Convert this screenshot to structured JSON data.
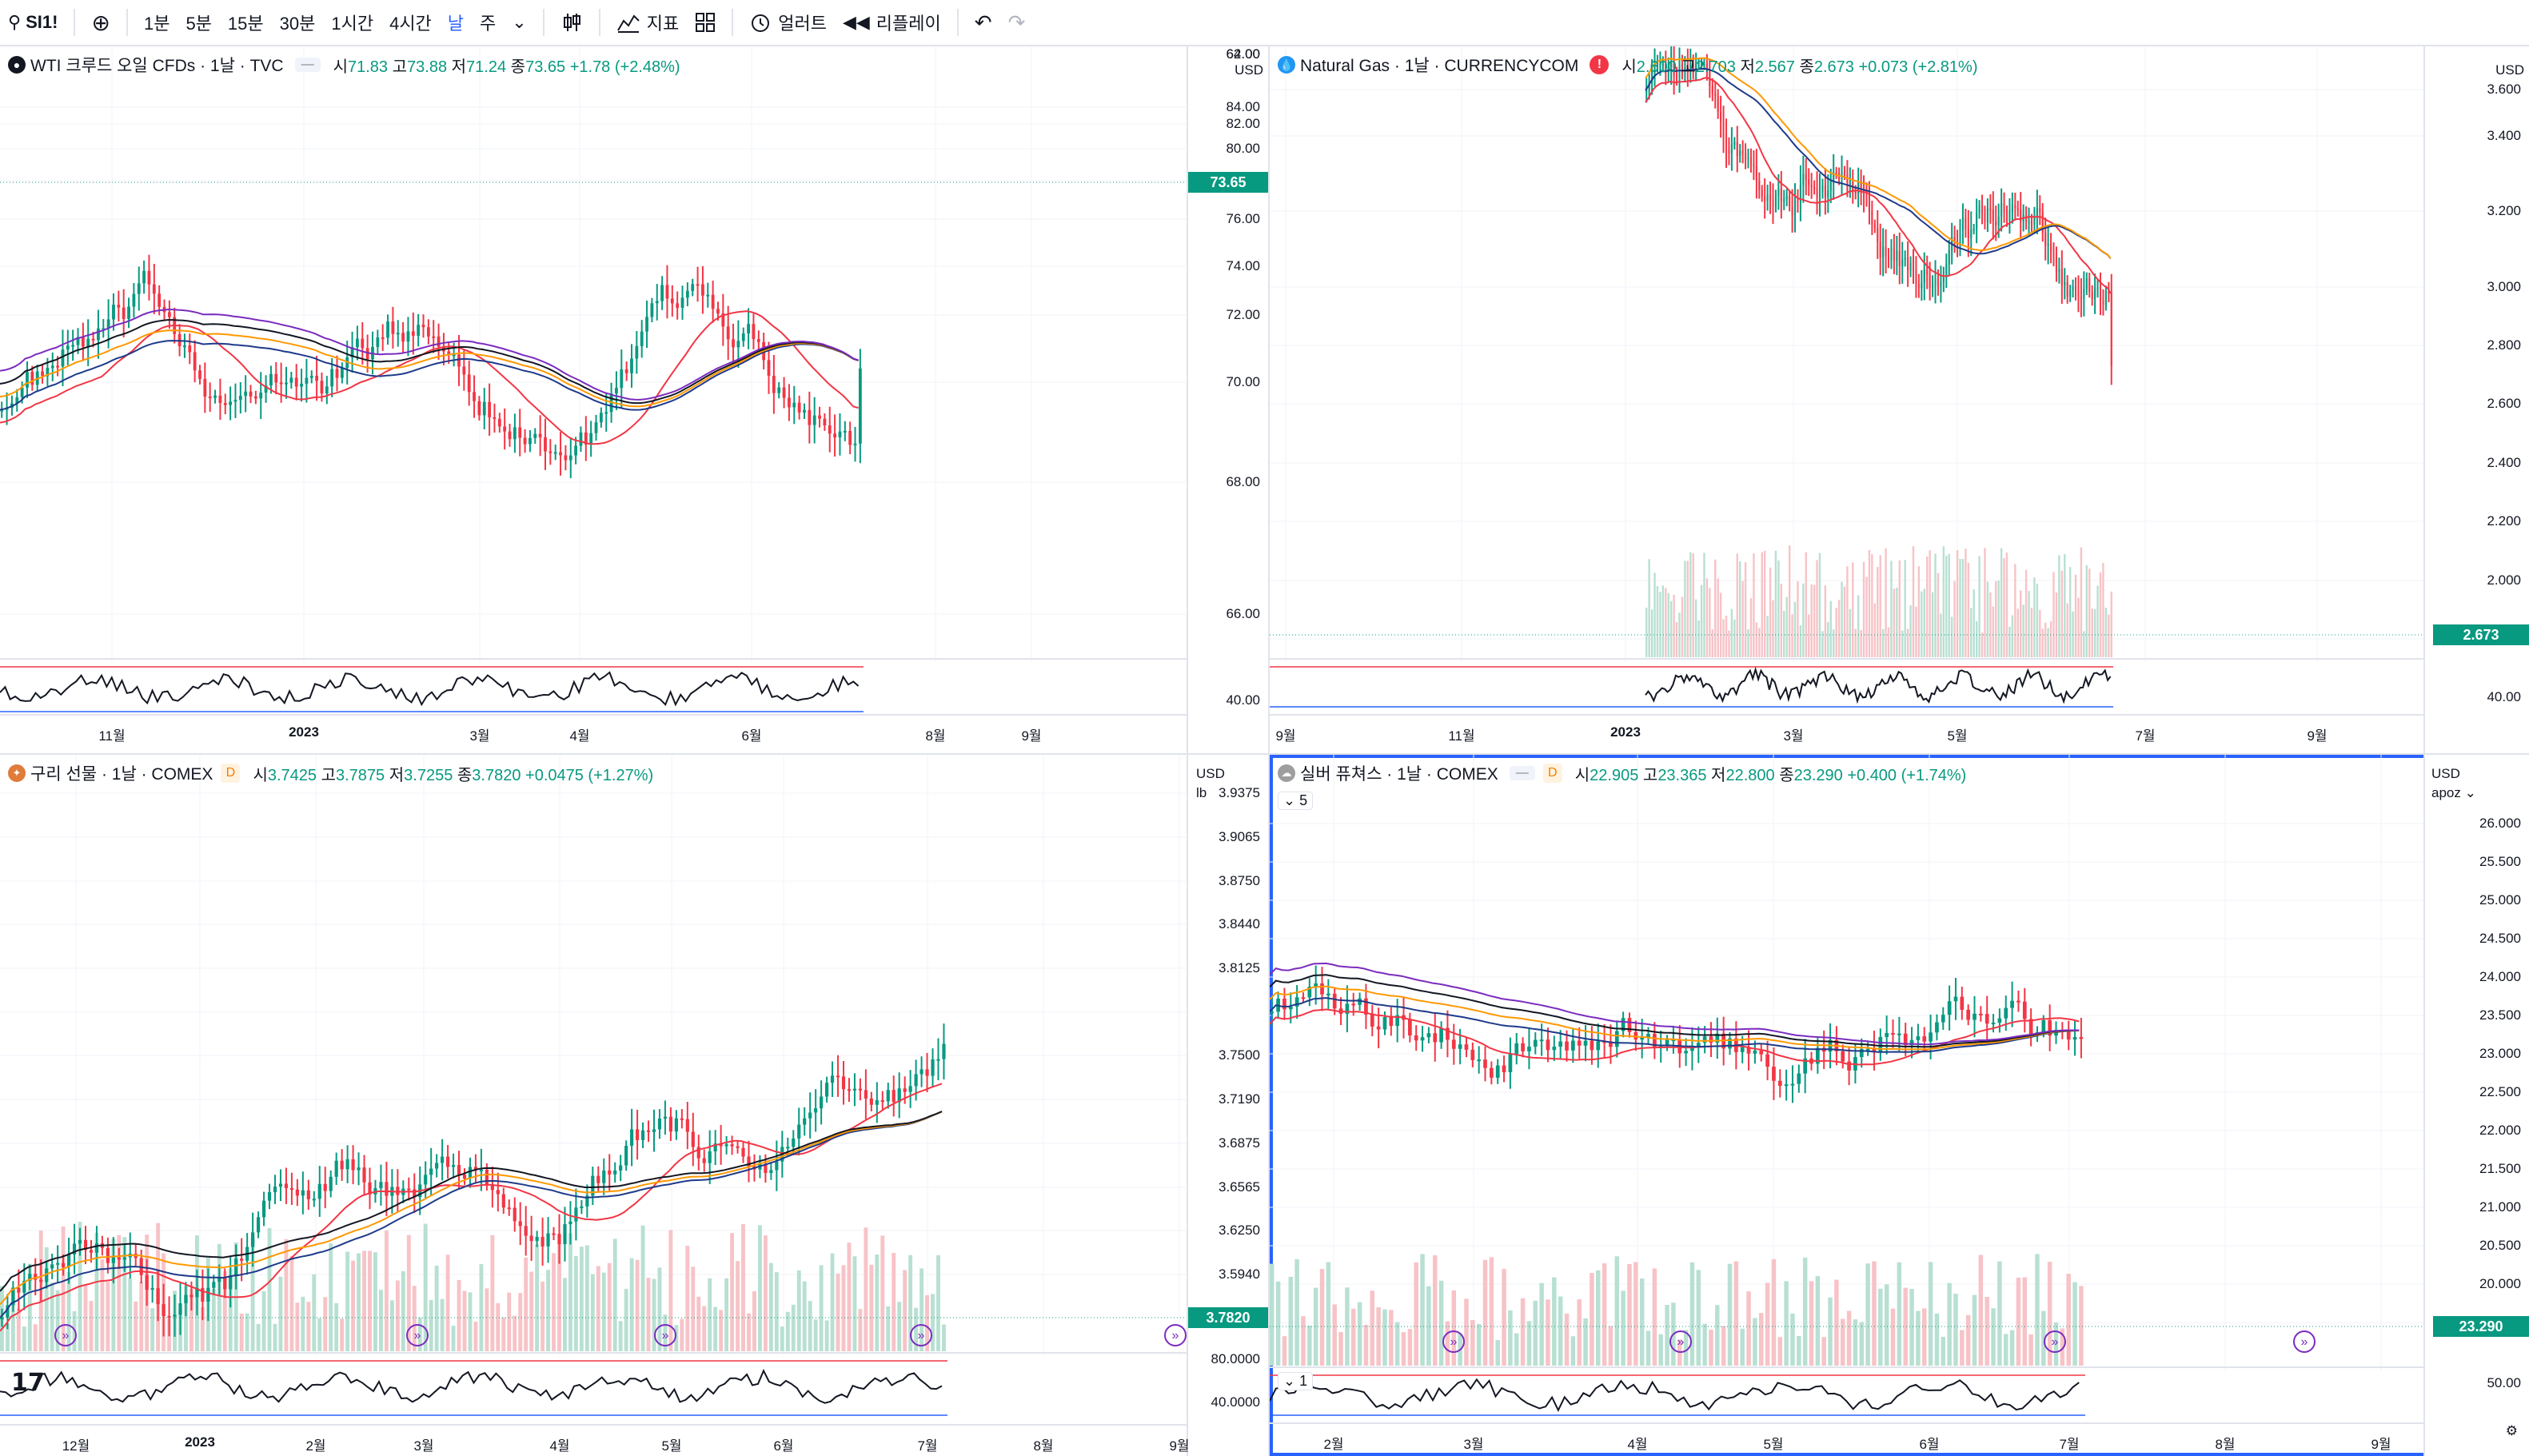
{
  "toolbar": {
    "symbol": "SI1!",
    "intervals": [
      "1분",
      "5분",
      "15분",
      "30분",
      "1시간",
      "4시간",
      "날",
      "주"
    ],
    "active_interval": "날",
    "indicators_label": "지표",
    "alert_label": "얼러트",
    "replay_label": "리플레이"
  },
  "panes": [
    {
      "id": "wti",
      "legend": {
        "name": "WTI 크루드 오일 CFDs · 1날 · TVC",
        "open_k": "시",
        "open": "71.83",
        "high_k": "고",
        "high": "73.88",
        "low_k": "저",
        "low": "71.24",
        "close_k": "종",
        "close": "73.65",
        "change": "+1.78 (+2.48%)"
      },
      "currency": "USD",
      "price_labels": [
        "84.00",
        "82.00",
        "80.00",
        "78.00",
        "76.00",
        "74.00",
        "72.00",
        "70.00",
        "68.00",
        "66.00",
        "64.00",
        "62.00"
      ],
      "last_price": "73.65",
      "osc_label": "40.00",
      "time_labels": [
        "11월",
        "2023",
        "3월",
        "4월",
        "6월",
        "8월",
        "9월"
      ],
      "chart_data": {
        "type": "candlestick",
        "title": "",
        "series": [
          {
            "name": "price",
            "start": 72.5,
            "end": 73.65,
            "range": [
              63.5,
              86.5
            ]
          },
          {
            "name": "ma20",
            "color": "#f23645"
          },
          {
            "name": "ma50",
            "color": "#1e3a8a"
          },
          {
            "name": "ma100",
            "color": "#ff9800"
          },
          {
            "name": "ma200",
            "color": "#131722"
          },
          {
            "name": "ma300",
            "color": "#7b2cbf"
          }
        ],
        "ylim": [
          61,
          86.5
        ]
      }
    },
    {
      "id": "natgas",
      "legend": {
        "name": "Natural Gas · 1날 · CURRENCYCOM",
        "open_k": "시",
        "open": "2.600",
        "high_k": "고",
        "high": "2.703",
        "low_k": "저",
        "low": "2.567",
        "close_k": "종",
        "close": "2.673",
        "change": "+0.073 (+2.81%)"
      },
      "currency": "USD",
      "price_labels": [
        "3.600",
        "3.400",
        "3.200",
        "3.000",
        "2.800",
        "2.600",
        "2.400",
        "2.200",
        "2.000",
        "1.800"
      ],
      "last_price": "2.673",
      "osc_label": "40.00",
      "time_labels": [
        "9월",
        "11월",
        "2023",
        "3월",
        "5월",
        "7월",
        "9월"
      ],
      "chart_data": {
        "type": "candlestick",
        "title": "",
        "series": [
          {
            "name": "price",
            "start": 3.65,
            "end": 2.673,
            "range": [
              2.05,
              3.7
            ]
          },
          {
            "name": "ma20",
            "color": "#f23645"
          },
          {
            "name": "ma50",
            "color": "#1e3a8a"
          },
          {
            "name": "ma100",
            "color": "#ff9800"
          }
        ],
        "ylim": [
          1.7,
          3.65
        ]
      }
    },
    {
      "id": "copper",
      "legend": {
        "name": "구리 선물 · 1날 · COMEX",
        "open_k": "시",
        "open": "3.7425",
        "high_k": "고",
        "high": "3.7875",
        "low_k": "저",
        "low": "3.7255",
        "close_k": "종",
        "close": "3.7820",
        "change": "+0.0475 (+1.27%)"
      },
      "currency": "USD",
      "unit": "lb",
      "price_labels": [
        "3.9375",
        "3.9065",
        "3.8750",
        "3.8440",
        "3.8125",
        "3.7820",
        "3.7500",
        "3.7190",
        "3.6875",
        "3.6565",
        "3.6250",
        "3.5940"
      ],
      "last_price": "3.7820",
      "osc_label": "80.0000",
      "osc_label2": "40.0000",
      "time_labels": [
        "12월",
        "2023",
        "2월",
        "3월",
        "4월",
        "5월",
        "6월",
        "7월",
        "8월",
        "9월"
      ],
      "chart_data": {
        "type": "candlestick",
        "title": "",
        "series": [
          {
            "name": "price",
            "start": 3.6,
            "end": 3.782,
            "range": [
              3.58,
              3.95
            ]
          },
          {
            "name": "ma20",
            "color": "#f23645"
          },
          {
            "name": "ma50",
            "color": "#1e3a8a"
          },
          {
            "name": "ma100",
            "color": "#ff9800"
          },
          {
            "name": "ma200",
            "color": "#131722"
          }
        ],
        "ylim": [
          3.57,
          3.95
        ]
      }
    },
    {
      "id": "silver",
      "legend": {
        "name": "실버 퓨쳐스 · 1날 · COMEX",
        "open_k": "시",
        "open": "22.905",
        "high_k": "고",
        "high": "23.365",
        "low_k": "저",
        "low": "22.800",
        "close_k": "종",
        "close": "23.290",
        "change": "+0.400 (+1.74%)"
      },
      "currency": "USD",
      "unit": "apoz",
      "sub_count": "5",
      "osc_count": "1",
      "price_labels": [
        "26.000",
        "25.500",
        "25.000",
        "24.500",
        "24.000",
        "23.500",
        "23.000",
        "22.500",
        "22.000",
        "21.500",
        "21.000",
        "20.500",
        "20.000",
        "19.500"
      ],
      "last_price": "23.290",
      "osc_label": "50.00",
      "time_labels": [
        "2월",
        "3월",
        "4월",
        "5월",
        "6월",
        "7월",
        "8월",
        "9월"
      ],
      "chart_data": {
        "type": "candlestick",
        "title": "",
        "series": [
          {
            "name": "price",
            "start": 23.8,
            "end": 23.29,
            "range": [
              20.2,
              26.3
            ]
          },
          {
            "name": "ma20",
            "color": "#f23645"
          },
          {
            "name": "ma50",
            "color": "#1e3a8a"
          },
          {
            "name": "ma100",
            "color": "#ff9800"
          },
          {
            "name": "ma200",
            "color": "#131722"
          },
          {
            "name": "ma300",
            "color": "#7b2cbf"
          }
        ],
        "ylim": [
          19.3,
          26.4
        ]
      }
    }
  ],
  "colors": {
    "up": "#089981",
    "down": "#f23645",
    "up_vol": "#b8e0d2",
    "down_vol": "#f7c3c7",
    "accent": "#2962ff"
  },
  "logo_text": "17"
}
